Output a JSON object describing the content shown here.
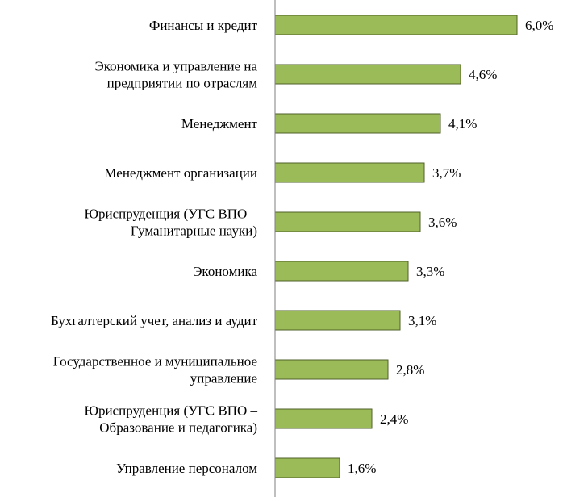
{
  "chart_data": {
    "type": "bar",
    "orientation": "horizontal",
    "categories": [
      [
        "Финансы и кредит"
      ],
      [
        "Экономика и управление на",
        "предприятии по отраслям"
      ],
      [
        "Менеджмент"
      ],
      [
        "Менеджмент организации"
      ],
      [
        "Юриспруденция (УГС ВПО –",
        "Гуманитарные науки)"
      ],
      [
        "Экономика"
      ],
      [
        "Бухгалтерский учет, анализ и аудит"
      ],
      [
        "Государственное и муниципальное",
        "управление"
      ],
      [
        "Юриспруденция (УГС ВПО –",
        "Образование и педагогика)"
      ],
      [
        "Управление персоналом"
      ]
    ],
    "values": [
      6.0,
      4.6,
      4.1,
      3.7,
      3.6,
      3.3,
      3.1,
      2.8,
      2.4,
      1.6
    ],
    "value_labels": [
      "6,0%",
      "4,6%",
      "4,1%",
      "3,7%",
      "3,6%",
      "3,3%",
      "3,1%",
      "2,8%",
      "2,4%",
      "1,6%"
    ],
    "unit": "%",
    "xlim": [
      0,
      6.0
    ],
    "grid": false,
    "legend": "none",
    "colors": {
      "bar_fill": "#9bbb59",
      "bar_stroke": "#4f6228",
      "axis": "#7f7f7f",
      "text": "#000000"
    }
  }
}
